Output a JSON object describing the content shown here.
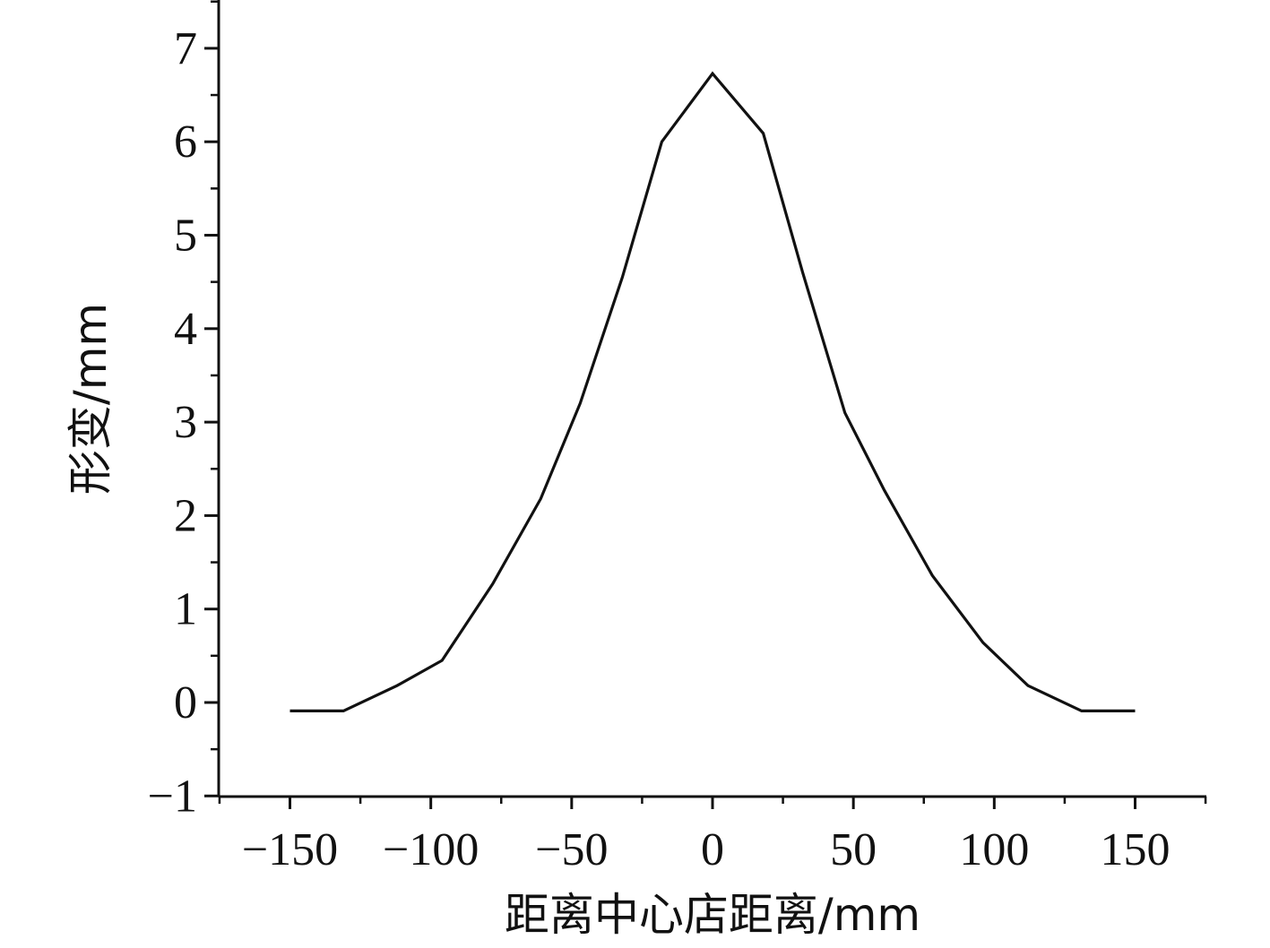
{
  "chart_data": {
    "type": "line",
    "title": "",
    "xlabel": "距离中心店距离/mm",
    "ylabel": "形变/mm",
    "xlim": [
      -175,
      175
    ],
    "ylim": [
      -1,
      7.5
    ],
    "x_ticks": [
      -150,
      -100,
      -50,
      0,
      50,
      100,
      150
    ],
    "x_tick_labels": [
      "−150",
      "−100",
      "−50",
      "0",
      "50",
      "100",
      "150"
    ],
    "y_ticks": [
      -1,
      0,
      1,
      2,
      3,
      4,
      5,
      6,
      7
    ],
    "y_tick_labels": [
      "−1",
      "0",
      "1",
      "2",
      "3",
      "4",
      "5",
      "6",
      "7"
    ],
    "grid": false,
    "legend": "none",
    "line_color": "#111111",
    "series": [
      {
        "x": [
          -150,
          -131,
          -112,
          -96,
          -78,
          -61,
          -47,
          -32,
          -18,
          0,
          18,
          32,
          47,
          61,
          78,
          96,
          112,
          131,
          150
        ],
        "y": [
          -0.09,
          -0.09,
          0.18,
          0.45,
          1.27,
          2.18,
          3.2,
          4.55,
          6.0,
          6.73,
          6.09,
          4.6,
          3.1,
          2.27,
          1.36,
          0.64,
          0.18,
          -0.09,
          -0.09
        ]
      }
    ]
  }
}
